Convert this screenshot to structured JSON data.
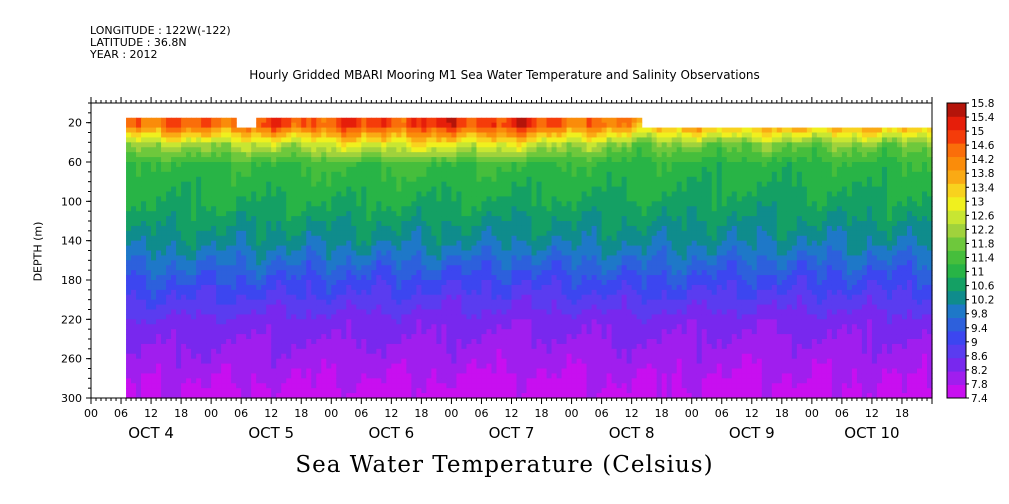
{
  "header": {
    "longitude": "LONGITUDE : 122W(-122)",
    "latitude": "LATITUDE : 36.8N",
    "year": "YEAR : 2012"
  },
  "title": "Hourly Gridded MBARI Mooring M1 Sea Water Temperature and Salinity Observations",
  "footer": "Sea Water Temperature (Celsius)",
  "chart_data": {
    "type": "heatmap",
    "title": "Hourly Gridded MBARI Mooring M1 Sea Water Temperature and Salinity Observations",
    "xlabel": "",
    "ylabel": "DEPTH (m)",
    "colorbar_label": "Sea Water Temperature (Celsius)",
    "ylim": [
      300,
      0
    ],
    "y_ticks": [
      20,
      60,
      100,
      140,
      180,
      220,
      260,
      300
    ],
    "x_hour_labels": [
      "00",
      "06",
      "12",
      "18",
      "00",
      "06",
      "12",
      "18",
      "00",
      "06",
      "12",
      "18",
      "00",
      "06",
      "12",
      "18",
      "00",
      "06",
      "12",
      "18",
      "00",
      "06",
      "12",
      "18",
      "00",
      "06",
      "12",
      "18"
    ],
    "x_day_labels": [
      "OCT  4",
      "OCT  5",
      "OCT  6",
      "OCT  7",
      "OCT  8",
      "OCT  9",
      "OCT 10"
    ],
    "x_range_hours": [
      0,
      168
    ],
    "data_start_hour": 7,
    "colorbar_levels": [
      7.4,
      7.8,
      8.2,
      8.6,
      9,
      9.4,
      9.8,
      10.2,
      10.6,
      11,
      11.4,
      11.8,
      12.2,
      12.6,
      13,
      13.4,
      13.8,
      14.2,
      14.6,
      15,
      15.4,
      15.8
    ],
    "colorbar_colors": [
      "#c80ff0",
      "#a01eee",
      "#7828ee",
      "#5a3cf0",
      "#3c46f0",
      "#2d60dc",
      "#1e78c8",
      "#0f8c8c",
      "#14a064",
      "#28b446",
      "#46be3c",
      "#6ec83c",
      "#a0d23c",
      "#c8e632",
      "#f0f01e",
      "#f8d21e",
      "#faaa14",
      "#fa8c0a",
      "#fa6e0a",
      "#f53c0a",
      "#e61e0a",
      "#b4140a"
    ],
    "profiles": [
      {
        "day": "OCT  4",
        "temps_by_depth": {
          "20": 14.8,
          "40": 12.4,
          "60": 11.3,
          "100": 11.0,
          "140": 10.4,
          "180": 9.4,
          "220": 8.5,
          "260": 8.1,
          "300": 7.6
        }
      },
      {
        "day": "OCT  5",
        "temps_by_depth": {
          "20": 15.0,
          "40": 12.6,
          "60": 11.4,
          "100": 11.0,
          "140": 10.3,
          "180": 9.3,
          "220": 8.4,
          "260": 8.0,
          "300": 7.6
        }
      },
      {
        "day": "OCT  6",
        "temps_by_depth": {
          "20": 15.2,
          "40": 13.2,
          "60": 11.5,
          "100": 11.0,
          "140": 10.3,
          "180": 9.2,
          "220": 8.4,
          "260": 8.0,
          "300": 7.5
        }
      },
      {
        "day": "OCT  7",
        "temps_by_depth": {
          "20": 15.4,
          "40": 13.0,
          "60": 11.4,
          "100": 10.9,
          "140": 10.2,
          "180": 9.1,
          "220": 8.3,
          "260": 7.9,
          "300": 7.5
        }
      },
      {
        "day": "OCT  8",
        "temps_by_depth": {
          "20": 14.2,
          "40": 12.0,
          "60": 11.3,
          "100": 10.9,
          "140": 10.3,
          "180": 9.3,
          "220": 8.4,
          "260": 8.0,
          "300": 7.6
        }
      },
      {
        "day": "OCT  9",
        "temps_by_depth": {
          "20": 14.2,
          "40": 12.0,
          "60": 11.2,
          "100": 10.8,
          "140": 10.2,
          "180": 9.2,
          "220": 8.3,
          "260": 7.9,
          "300": 7.6
        }
      },
      {
        "day": "OCT 10",
        "temps_by_depth": {
          "20": 14.2,
          "40": 12.1,
          "60": 11.3,
          "100": 10.9,
          "140": 10.2,
          "180": 9.2,
          "220": 8.4,
          "260": 8.0,
          "300": 7.6
        }
      }
    ]
  }
}
